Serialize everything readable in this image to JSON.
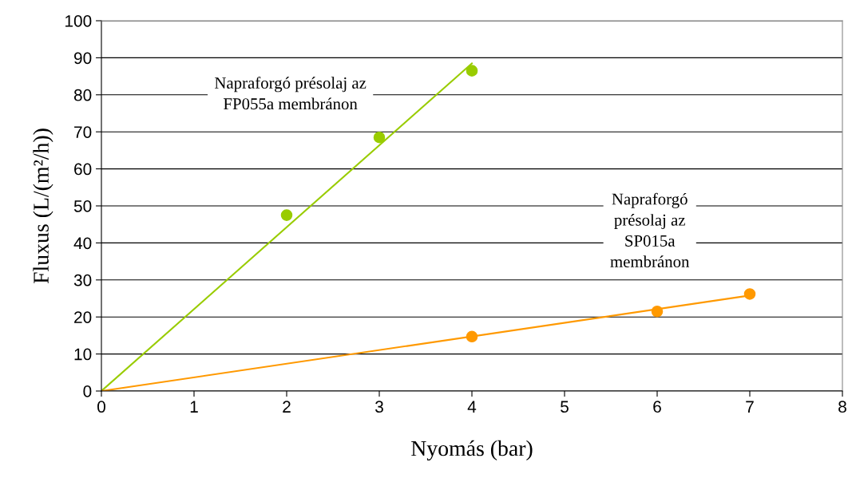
{
  "chart_data": {
    "type": "scatter",
    "xlabel": "Nyomás (bar)",
    "ylabel": "Fluxus (L/(m²/h))",
    "xlim": [
      0,
      8
    ],
    "ylim": [
      0,
      100
    ],
    "xticks": [
      0,
      1,
      2,
      3,
      4,
      5,
      6,
      7,
      8
    ],
    "yticks": [
      0,
      10,
      20,
      30,
      40,
      50,
      60,
      70,
      80,
      90,
      100
    ],
    "grid": "y",
    "legend": false,
    "series": [
      {
        "name": "Napraforgó présolaj az\nFP055a membránon",
        "color": "#99cc00",
        "x": [
          2,
          3,
          4
        ],
        "values": [
          47.5,
          68.5,
          86.5
        ],
        "marker": "circle"
      },
      {
        "name": "Napraforgó\nprésolaj az\nSP015a\nmembránon",
        "color": "#ff9900",
        "x": [
          4,
          6,
          7
        ],
        "values": [
          14.7,
          21.5,
          26.2
        ],
        "marker": "circle"
      },
      {
        "type": "line",
        "color": "#99cc00",
        "x": [
          0,
          4
        ],
        "values": [
          0,
          88.5
        ],
        "marker": "none"
      },
      {
        "type": "line",
        "color": "#ff9900",
        "x": [
          0,
          7
        ],
        "values": [
          0,
          25.8
        ],
        "marker": "none"
      }
    ]
  }
}
